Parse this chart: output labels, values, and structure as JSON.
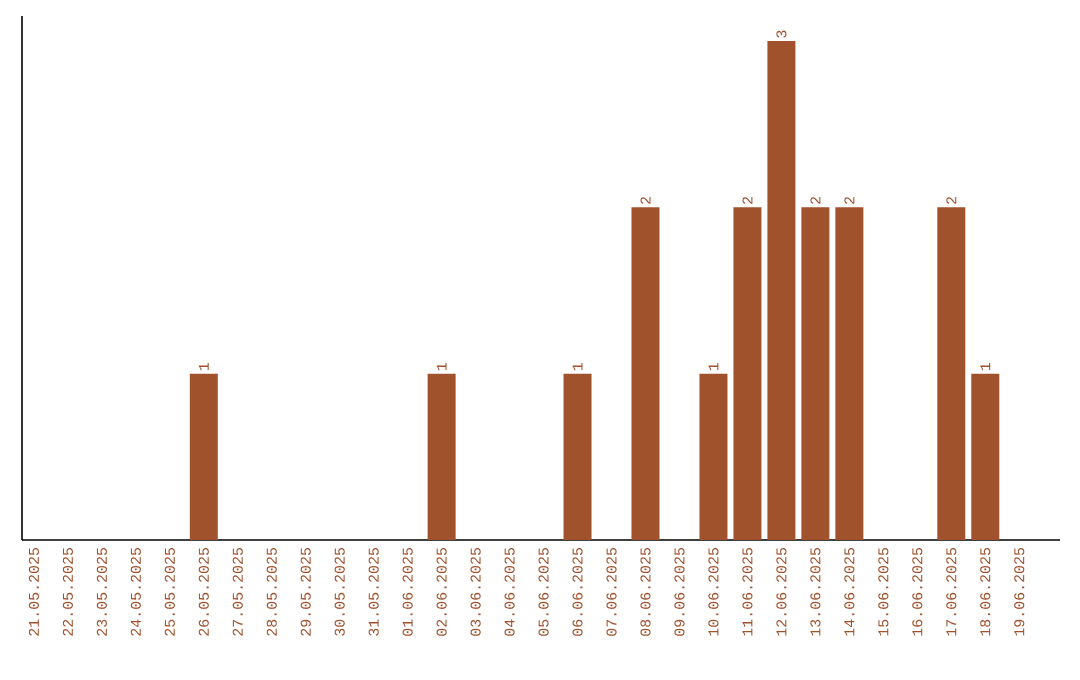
{
  "chart_data": {
    "type": "bar",
    "categories": [
      "21.05.2025",
      "22.05.2025",
      "23.05.2025",
      "24.05.2025",
      "25.05.2025",
      "26.05.2025",
      "27.05.2025",
      "28.05.2025",
      "29.05.2025",
      "30.05.2025",
      "31.05.2025",
      "01.06.2025",
      "02.06.2025",
      "03.06.2025",
      "04.06.2025",
      "05.06.2025",
      "06.06.2025",
      "07.06.2025",
      "08.06.2025",
      "09.06.2025",
      "10.06.2025",
      "11.06.2025",
      "12.06.2025",
      "13.06.2025",
      "14.06.2025",
      "15.06.2025",
      "16.06.2025",
      "17.06.2025",
      "18.06.2025",
      "19.06.2025"
    ],
    "values": [
      0,
      0,
      0,
      0,
      0,
      1,
      0,
      0,
      0,
      0,
      0,
      0,
      1,
      0,
      0,
      0,
      1,
      0,
      2,
      0,
      1,
      2,
      3,
      2,
      2,
      0,
      0,
      2,
      1,
      0
    ],
    "value_labels": [
      null,
      null,
      null,
      null,
      null,
      "1",
      null,
      null,
      null,
      null,
      null,
      null,
      "1",
      null,
      null,
      null,
      "1",
      null,
      "2",
      null,
      "1",
      "2",
      "3",
      "2",
      "2",
      null,
      null,
      "2",
      "1",
      null
    ],
    "color": "#a0522d",
    "ylim": [
      0,
      3.15
    ],
    "tick_labels": "x",
    "grid": false
  }
}
